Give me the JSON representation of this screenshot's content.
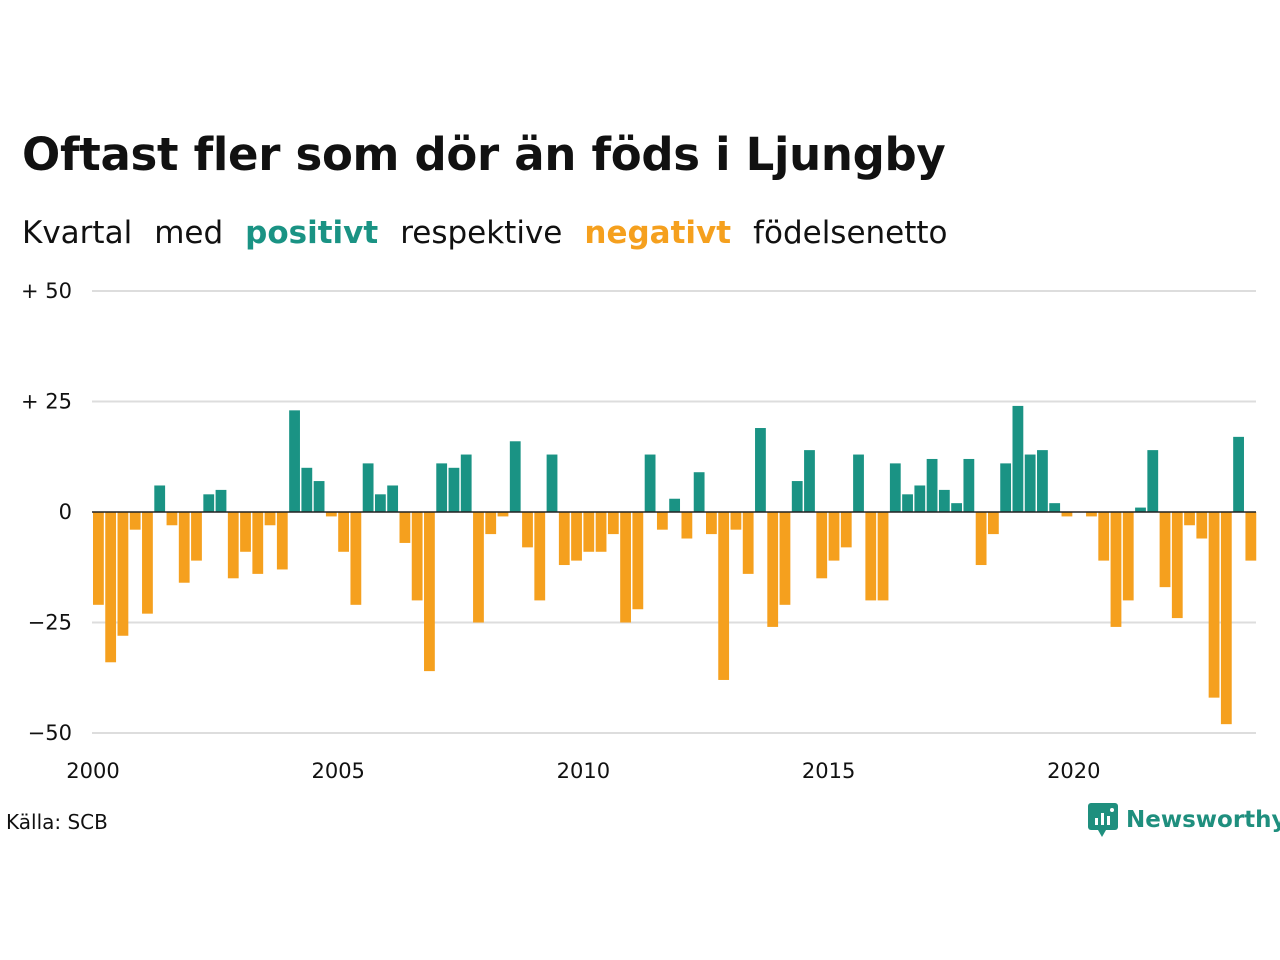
{
  "title": "Oftast fler som dör än föds i Ljungby",
  "subtitle": {
    "part1": "Kvartal",
    "part2": "med",
    "positive_word": "positivt",
    "part3": "respektive",
    "negative_word": "negativt",
    "part4": "födelsenetto"
  },
  "source": "Källa: SCB",
  "brand": {
    "name": "Newsworthy",
    "icon": "newsworthy-logo-icon"
  },
  "colors": {
    "positive": "#1a9384",
    "negative": "#f5a01e",
    "grid": "#dddddd",
    "zero_line": "#222222"
  },
  "chart_data": {
    "type": "bar",
    "title": "Oftast fler som dör än föds i Ljungby",
    "xlabel": "",
    "ylabel": "",
    "x_start": "2000 Q1",
    "frequency": "quarterly",
    "ylim": [
      -50,
      50
    ],
    "grid": true,
    "y_ticks": [
      {
        "value": 50,
        "label": "+ 50"
      },
      {
        "value": 25,
        "label": "+ 25"
      },
      {
        "value": 0,
        "label": "0"
      },
      {
        "value": -25,
        "label": "−25"
      },
      {
        "value": -50,
        "label": "−50"
      }
    ],
    "x_ticks": [
      {
        "year": 2000,
        "label": "2000"
      },
      {
        "year": 2005,
        "label": "2005"
      },
      {
        "year": 2010,
        "label": "2010"
      },
      {
        "year": 2015,
        "label": "2015"
      },
      {
        "year": 2020,
        "label": "2020"
      }
    ],
    "values": [
      -21,
      -34,
      -28,
      -4,
      -23,
      6,
      -3,
      -16,
      -11,
      4,
      5,
      -15,
      -9,
      -14,
      -3,
      -13,
      23,
      10,
      7,
      -1,
      -9,
      -21,
      11,
      4,
      6,
      -7,
      -20,
      -36,
      11,
      10,
      13,
      -25,
      -5,
      -1,
      16,
      -8,
      -20,
      13,
      -12,
      -11,
      -9,
      -9,
      -5,
      -25,
      -22,
      13,
      -4,
      3,
      -6,
      9,
      -5,
      -38,
      -4,
      -14,
      19,
      -26,
      -21,
      7,
      14,
      -15,
      -11,
      -8,
      13,
      -20,
      -20,
      11,
      4,
      6,
      12,
      5,
      2,
      12,
      -12,
      -5,
      11,
      24,
      13,
      14,
      2,
      -1,
      0,
      -1,
      -11,
      -26,
      -20,
      1,
      14,
      -17,
      -24,
      -3,
      -6,
      -42,
      -48,
      17,
      -11
    ]
  }
}
